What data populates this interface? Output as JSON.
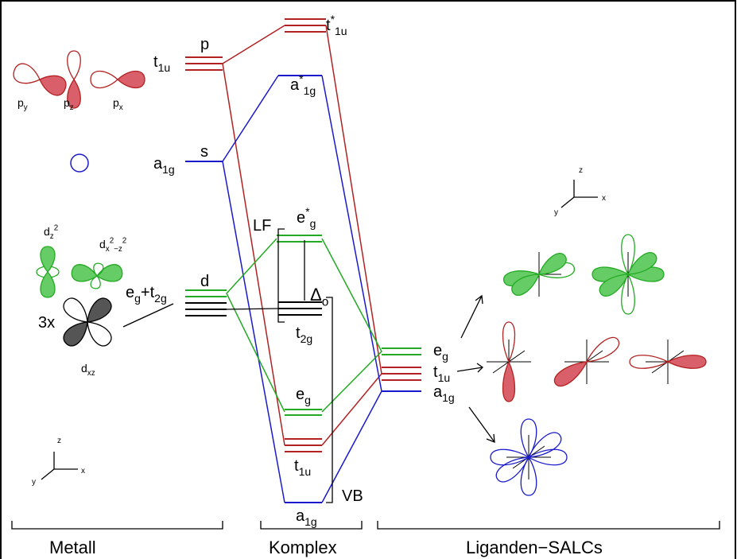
{
  "labels": [
    [
      {
        "text": "p"
      }
    ],
    [
      {
        "text": "t",
        "sub": "1u"
      }
    ],
    [
      {
        "text": "s"
      }
    ],
    [
      {
        "text": "a",
        "sub": "1g"
      }
    ],
    [
      {
        "text": "d"
      }
    ],
    [
      {
        "text": "e",
        "sub": "g"
      },
      {
        "text": "+t",
        "sub": "2g"
      }
    ],
    [
      {
        "text": "3x"
      }
    ],
    [
      {
        "text": "p",
        "sub": "y"
      }
    ],
    [
      {
        "text": "p",
        "sub": "z"
      }
    ],
    [
      {
        "text": "p",
        "sub": "x"
      }
    ],
    [
      {
        "text": "d",
        "sub": "z"
      },
      {
        "sup": "2"
      }
    ],
    [
      {
        "text": "d",
        "sub": "x"
      },
      {
        "sup": "2"
      },
      {
        "sub": "−z"
      },
      {
        "sup": "2"
      }
    ],
    [
      {
        "text": "d",
        "sub": "xz"
      }
    ],
    [
      {
        "text": "t",
        "sup": "*",
        "sub": "1u"
      }
    ],
    [
      {
        "text": "a",
        "sup": "*",
        "sub": "1g"
      }
    ],
    [
      {
        "text": "LF"
      }
    ],
    [
      {
        "text": "e",
        "sup": "*",
        "sub": "g"
      }
    ],
    [
      {
        "text": "Δ",
        "sub": "o"
      }
    ],
    [
      {
        "text": "t",
        "sub": "2g"
      }
    ],
    [
      {
        "text": "e",
        "sub": "g"
      }
    ],
    [
      {
        "text": "t",
        "sub": "1u"
      }
    ],
    [
      {
        "text": "a",
        "sub": "1g"
      }
    ],
    [
      {
        "text": "VB"
      }
    ],
    [
      {
        "text": "e",
        "sub": "g"
      }
    ],
    [
      {
        "text": "t",
        "sub": "1u"
      }
    ],
    [
      {
        "text": "a",
        "sub": "1g"
      }
    ],
    [
      {
        "text": "z"
      }
    ],
    [
      {
        "text": "x"
      }
    ],
    [
      {
        "text": "y"
      }
    ],
    [
      {
        "text": "z"
      }
    ],
    [
      {
        "text": "x"
      }
    ],
    [
      {
        "text": "y"
      }
    ],
    [
      {
        "text": "Metall"
      }
    ],
    [
      {
        "text": "Komplex"
      }
    ],
    [
      {
        "text": "Liganden−SALCs"
      }
    ]
  ]
}
